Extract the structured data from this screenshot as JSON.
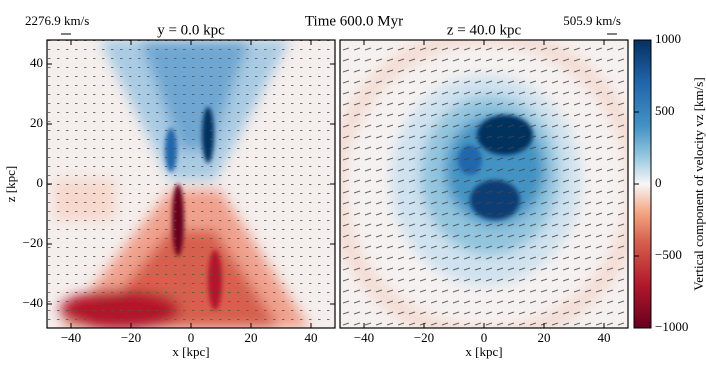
{
  "title": "Time 600.0 Myr",
  "chart_data": [
    {
      "type": "heatmap",
      "title": "y = 0.0 kpc",
      "annotation": "2276.9 km/s",
      "xlabel": "x [kpc]",
      "ylabel": "z [kpc]",
      "xlim": [
        -48,
        48
      ],
      "ylim": [
        -48,
        48
      ],
      "xticks": [
        {
          "value": -40,
          "label": "−40"
        },
        {
          "value": -20,
          "label": "−20"
        },
        0,
        20,
        40
      ],
      "yticks": [
        {
          "value": -40,
          "label": "−40"
        },
        {
          "value": -20,
          "label": "−20"
        },
        0,
        20,
        40
      ]
    },
    {
      "type": "heatmap",
      "title": "z = 40.0 kpc",
      "annotation": "505.9 km/s",
      "xlabel": "x [kpc]",
      "xlim": [
        -48,
        48
      ],
      "ylim": [
        -48,
        48
      ],
      "xticks": [
        {
          "value": -40,
          "label": "−40"
        },
        {
          "value": -20,
          "label": "−20"
        },
        0,
        20,
        40
      ]
    }
  ],
  "colorbar": {
    "label": "Vertical component of velocity vz [km/s]",
    "lim": [
      -1000,
      1000
    ],
    "ticks": [
      {
        "value": -1000,
        "label": "−1000"
      },
      {
        "value": -500,
        "label": "−500"
      },
      0,
      500,
      1000
    ]
  }
}
